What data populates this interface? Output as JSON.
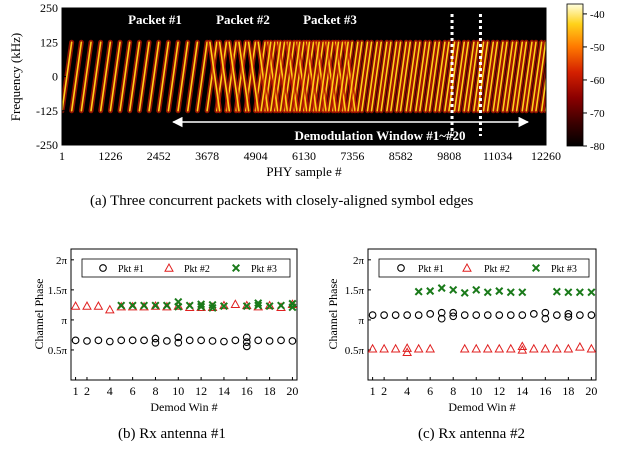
{
  "chart_data": [
    {
      "type": "heatmap",
      "caption": "(a)  Three concurrent packets with closely-aligned symbol edges",
      "xlabel": "PHY sample #",
      "ylabel": "Frequency (kHz)",
      "xticks": [
        "1",
        "1226",
        "2452",
        "3678",
        "4904",
        "6130",
        "7356",
        "8582",
        "9808",
        "11034",
        "12260"
      ],
      "xlim": [
        1,
        12260
      ],
      "yticks": [
        "250",
        "125",
        "0",
        "-125",
        "-250"
      ],
      "ylim": [
        -250,
        250
      ],
      "colorbar_ticks": [
        "-40",
        "-50",
        "-60",
        "-70",
        "-80"
      ],
      "colorbar_range": [
        -80,
        -37
      ],
      "colormap": [
        "#000000",
        "#3a0000",
        "#8b0000",
        "#d42000",
        "#ff7a00",
        "#ffd21a",
        "#ffffe0"
      ],
      "annotations": [
        "Packet #1",
        "Packet #2",
        "Packet #3",
        "Demodulation Window #1~#20"
      ],
      "packets": [
        {
          "name": "Packet #1",
          "direction": "upchirp",
          "start": 1,
          "end": 12260
        },
        {
          "name": "Packet #2",
          "direction": "downchirp",
          "start": 3678,
          "end": 7356
        },
        {
          "name": "Packet #3",
          "direction": "upchirp",
          "start": 4904,
          "end": 12260
        }
      ],
      "demod_window": [
        3678,
        12260
      ],
      "marker_lines": [
        9880,
        10600
      ]
    },
    {
      "type": "scatter",
      "caption": "(b)  Rx antenna #1",
      "xlabel": "Demod Win #",
      "ylabel": "Channel Phase",
      "xticks": [
        "1",
        "2",
        "4",
        "6",
        "8",
        "10",
        "12",
        "14",
        "16",
        "18",
        "20"
      ],
      "xlim": [
        0.6,
        20.4
      ],
      "yticks": [
        "0.5π",
        "π",
        "1.5π",
        "2π"
      ],
      "ylim": [
        0,
        2.18
      ],
      "series": [
        {
          "name": "Pkt #1",
          "marker": "circle",
          "color": "#000000",
          "x": [
            1,
            2,
            3,
            4,
            5,
            6,
            7,
            8,
            8,
            9,
            10,
            10,
            11,
            12,
            13,
            14,
            15,
            16,
            16,
            16,
            17,
            18,
            19,
            20
          ],
          "y": [
            0.66,
            0.65,
            0.66,
            0.64,
            0.66,
            0.66,
            0.66,
            0.62,
            0.69,
            0.65,
            0.62,
            0.71,
            0.66,
            0.66,
            0.65,
            0.64,
            0.66,
            0.56,
            0.63,
            0.71,
            0.66,
            0.65,
            0.66,
            0.65
          ]
        },
        {
          "name": "Pkt #2",
          "marker": "triangle",
          "color": "#e02020",
          "x": [
            1,
            2,
            3,
            4,
            5,
            6,
            7,
            8,
            9,
            10,
            11,
            12,
            13,
            14,
            15,
            16,
            17,
            18,
            19,
            20
          ],
          "y": [
            1.23,
            1.23,
            1.23,
            1.17,
            1.22,
            1.22,
            1.22,
            1.23,
            1.22,
            1.23,
            1.21,
            1.21,
            1.21,
            1.24,
            1.26,
            1.24,
            1.22,
            1.24,
            1.21,
            1.26
          ]
        },
        {
          "name": "Pkt #3",
          "marker": "x",
          "color": "#1a7a1a",
          "x": [
            5,
            6,
            7,
            8,
            9,
            10,
            10,
            11,
            12,
            12,
            13,
            13,
            14,
            16,
            17,
            17,
            18,
            19,
            20,
            20
          ],
          "y": [
            1.24,
            1.24,
            1.24,
            1.24,
            1.24,
            1.22,
            1.3,
            1.24,
            1.22,
            1.26,
            1.2,
            1.25,
            1.23,
            1.23,
            1.24,
            1.28,
            1.23,
            1.24,
            1.21,
            1.27
          ]
        }
      ]
    },
    {
      "type": "scatter",
      "caption": "(c)  Rx antenna #2",
      "xlabel": "Demod Win #",
      "ylabel": "Channel Phase",
      "xticks": [
        "1",
        "2",
        "4",
        "6",
        "8",
        "10",
        "12",
        "14",
        "16",
        "18",
        "20"
      ],
      "xlim": [
        0.6,
        20.4
      ],
      "yticks": [
        "0.5π",
        "π",
        "1.5π",
        "2π"
      ],
      "ylim": [
        0,
        2.18
      ],
      "series": [
        {
          "name": "Pkt #1",
          "marker": "circle",
          "color": "#000000",
          "x": [
            1,
            2,
            3,
            4,
            5,
            6,
            7,
            7,
            8,
            8,
            9,
            10,
            11,
            12,
            13,
            14,
            15,
            16,
            16,
            17,
            18,
            18,
            19,
            20
          ],
          "y": [
            1.08,
            1.08,
            1.08,
            1.08,
            1.08,
            1.1,
            1.02,
            1.12,
            1.06,
            1.12,
            1.08,
            1.08,
            1.08,
            1.08,
            1.08,
            1.08,
            1.1,
            1.02,
            1.12,
            1.08,
            1.05,
            1.1,
            1.08,
            1.08
          ]
        },
        {
          "name": "Pkt #2",
          "marker": "triangle",
          "color": "#e02020",
          "x": [
            1,
            2,
            3,
            4,
            4,
            5,
            6,
            9,
            10,
            11,
            12,
            13,
            14,
            14,
            15,
            16,
            17,
            18,
            19,
            20
          ],
          "y": [
            0.52,
            0.52,
            0.52,
            0.46,
            0.53,
            0.52,
            0.52,
            0.52,
            0.52,
            0.52,
            0.52,
            0.52,
            0.5,
            0.56,
            0.52,
            0.52,
            0.52,
            0.52,
            0.55,
            0.52
          ]
        },
        {
          "name": "Pkt #3",
          "marker": "x",
          "color": "#1a7a1a",
          "x": [
            5,
            6,
            7,
            8,
            9,
            10,
            11,
            12,
            13,
            14,
            17,
            18,
            19,
            20
          ],
          "y": [
            1.47,
            1.48,
            1.53,
            1.5,
            1.45,
            1.5,
            1.46,
            1.48,
            1.46,
            1.46,
            1.47,
            1.46,
            1.46,
            1.46
          ]
        }
      ]
    }
  ]
}
